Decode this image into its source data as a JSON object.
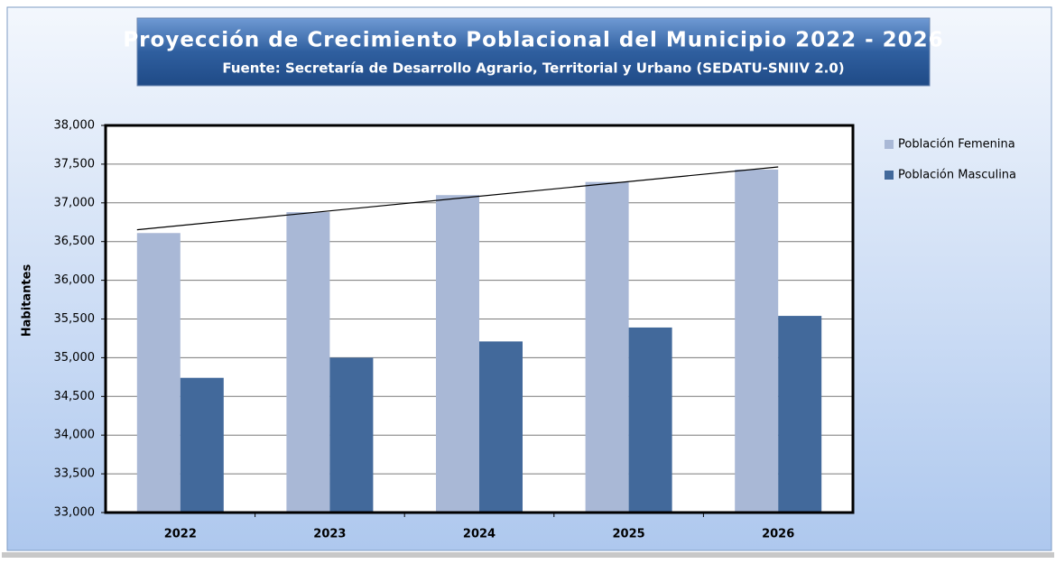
{
  "chart_data": {
    "type": "bar",
    "title": "Proyección de Crecimiento Poblacional del Municipio 2022 - 2026",
    "subtitle": "Fuente: Secretaría de Desarrollo Agrario, Territorial y Urbano (SEDATU-SNIIV 2.0)",
    "y_label": "Habitantes",
    "categories": [
      "2022",
      "2023",
      "2024",
      "2025",
      "2026"
    ],
    "series": [
      {
        "name": "Población Femenina",
        "color": "#a9b8d6",
        "values": [
          36610,
          36880,
          37100,
          37270,
          37430
        ]
      },
      {
        "name": "Población Masculina",
        "color": "#42699b",
        "values": [
          34740,
          35000,
          35210,
          35390,
          35540
        ]
      }
    ],
    "ylim": [
      33000,
      38000
    ],
    "yticks": [
      {
        "value": 33000,
        "label": "33,000"
      },
      {
        "value": 33500,
        "label": "33,500"
      },
      {
        "value": 34000,
        "label": "34,000"
      },
      {
        "value": 34500,
        "label": "34,500"
      },
      {
        "value": 35000,
        "label": "35,000"
      },
      {
        "value": 35500,
        "label": "35,500"
      },
      {
        "value": 36000,
        "label": "36,000"
      },
      {
        "value": 36500,
        "label": "36,500"
      },
      {
        "value": 37000,
        "label": "37,000"
      },
      {
        "value": 37500,
        "label": "37,500"
      },
      {
        "value": 38000,
        "label": "38,000"
      }
    ],
    "grid": true,
    "legend": "right"
  }
}
